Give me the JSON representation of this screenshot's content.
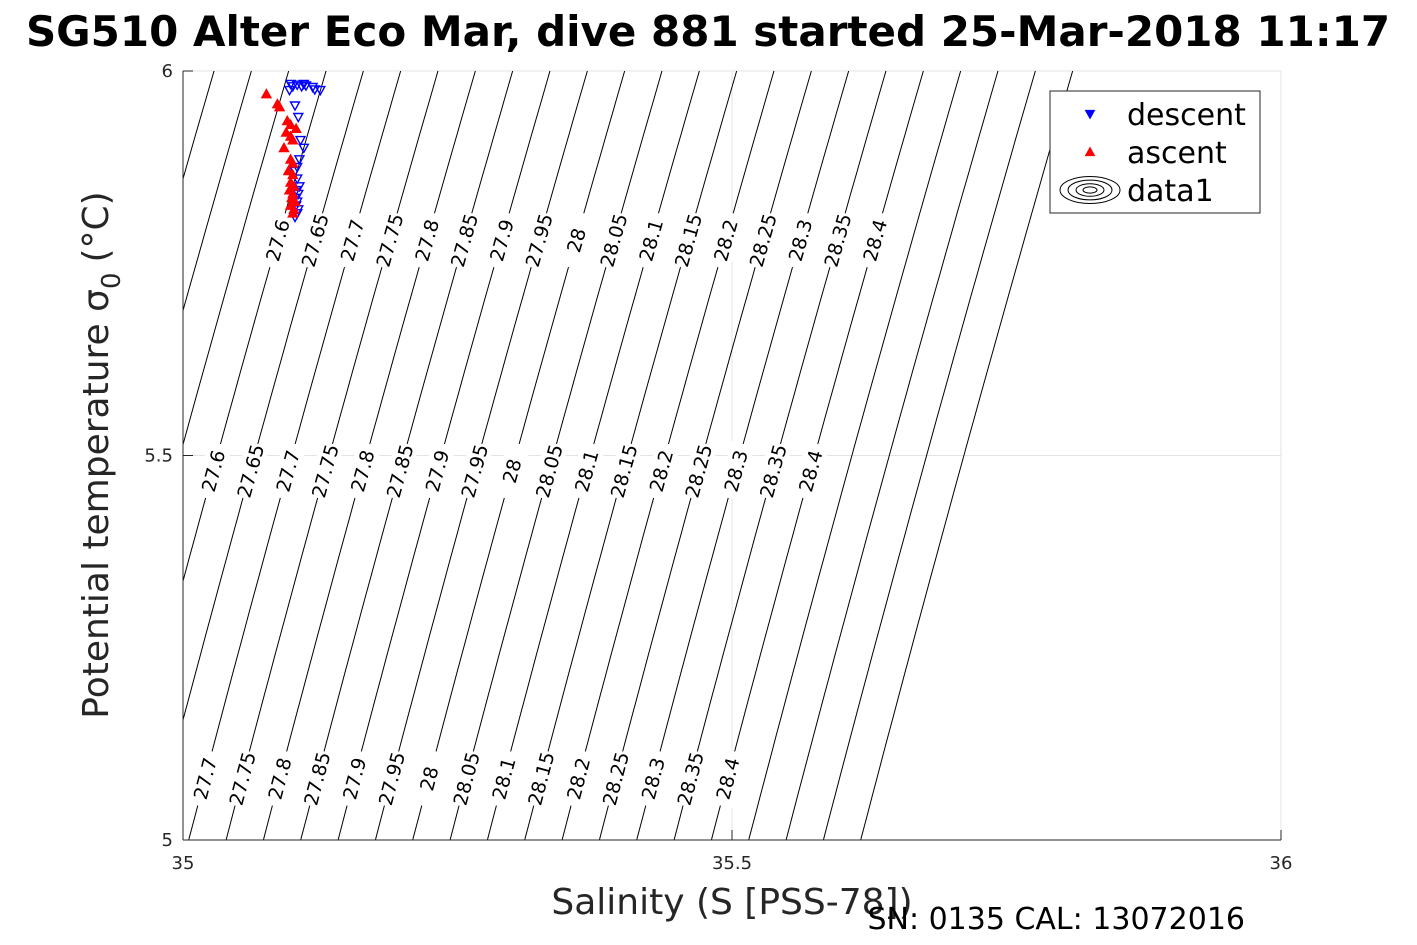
{
  "chart_data": {
    "type": "scatter",
    "title": "SG510 Alter Eco Mar, dive 881 started 25-Mar-2018 11:17",
    "xlabel": "Salinity (S [PSS-78])",
    "ylabel": "Potential temperature σ",
    "ylabel_sub": "0",
    "ylabel_unit": "(°C)",
    "xlim": [
      35,
      36
    ],
    "ylim": [
      5,
      6
    ],
    "xticks": [
      35,
      35.5,
      36
    ],
    "yticks": [
      5,
      5.5,
      6
    ],
    "xtick_labels": [
      "35",
      "35.5",
      "36"
    ],
    "ytick_labels": [
      "5",
      "5.5",
      "6"
    ],
    "grid": true,
    "legend_position": "top-right",
    "contour_levels": [
      "27.6",
      "27.65",
      "27.7",
      "27.75",
      "27.8",
      "27.85",
      "27.9",
      "27.95",
      "28",
      "28.05",
      "28.1",
      "28.15",
      "28.2",
      "28.25",
      "28.3",
      "28.35",
      "28.4"
    ],
    "series": [
      {
        "name": "descent",
        "marker": "triangle-down",
        "color": "#0000ff",
        "x": [
          35.098,
          35.1,
          35.104,
          35.108,
          35.11,
          35.112,
          35.118,
          35.12,
          35.125,
          35.097,
          35.102,
          35.105,
          35.107,
          35.11,
          35.106,
          35.104,
          35.102,
          35.104,
          35.106,
          35.103,
          35.105,
          35.102,
          35.104,
          35.103,
          35.105,
          35.104,
          35.102
        ],
        "y": [
          5.983,
          5.98,
          5.982,
          5.98,
          5.983,
          5.981,
          5.979,
          5.976,
          5.975,
          5.975,
          5.955,
          5.94,
          5.91,
          5.9,
          5.885,
          5.875,
          5.87,
          5.86,
          5.85,
          5.845,
          5.84,
          5.835,
          5.83,
          5.825,
          5.82,
          5.815,
          5.81
        ]
      },
      {
        "name": "ascent",
        "marker": "triangle-up",
        "color": "#ff0000",
        "x": [
          35.076,
          35.086,
          35.088,
          35.095,
          35.098,
          35.103,
          35.094,
          35.098,
          35.1,
          35.092,
          35.098,
          35.1,
          35.096,
          35.1,
          35.098,
          35.101,
          35.097,
          35.1,
          35.099,
          35.102,
          35.098,
          35.101,
          35.1
        ],
        "y": [
          5.97,
          5.957,
          5.953,
          5.935,
          5.93,
          5.925,
          5.92,
          5.915,
          5.91,
          5.9,
          5.885,
          5.88,
          5.87,
          5.865,
          5.855,
          5.85,
          5.845,
          5.84,
          5.835,
          5.83,
          5.825,
          5.82,
          5.815
        ]
      },
      {
        "name": "data1",
        "marker": "contour",
        "color": "#000000"
      }
    ],
    "footer": "SN: 0135  CAL: 13072016"
  }
}
